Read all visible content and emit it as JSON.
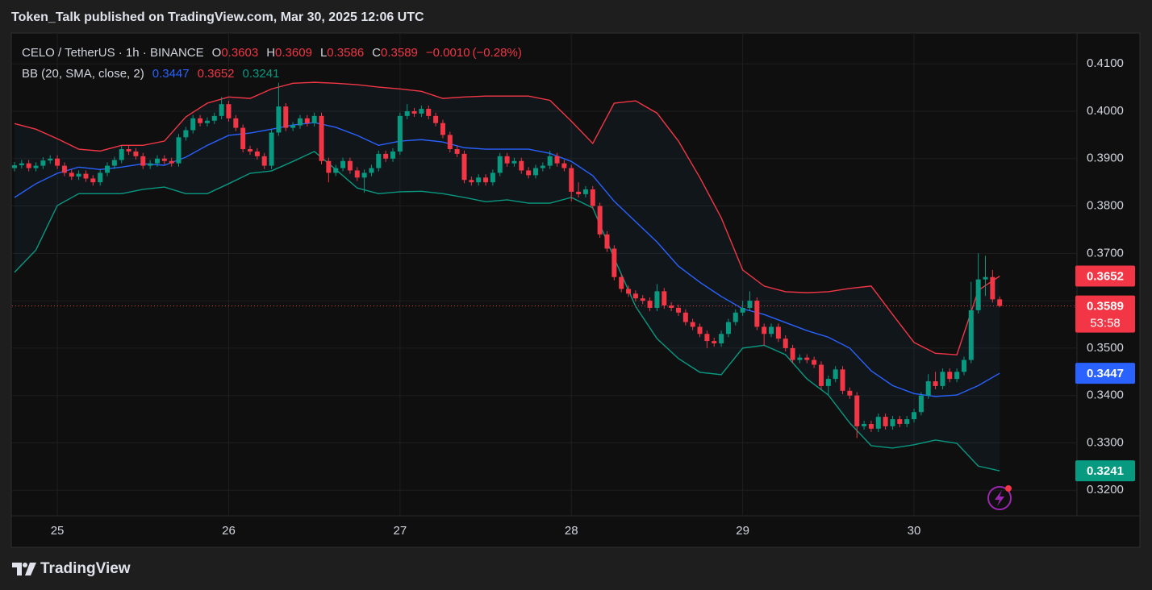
{
  "chart_data": {
    "type": "candlestick",
    "publisher": "Token_Talk published on TradingView.com, Mar 30, 2025 12:06 UTC",
    "symbol": "CELO / TetherUS · 1h · BINANCE",
    "ohlc_labels": [
      "O",
      "H",
      "L",
      "C"
    ],
    "change": {
      "value": -0.001,
      "label": "−0.0010"
    },
    "change_pct": {
      "value": -0.28,
      "label": "(−0.28%)"
    },
    "countdown": "53:58",
    "brand": "TradingView",
    "up_color": "#089981",
    "down_color": "#f23645",
    "grid": true,
    "xlim": [
      24.736,
      30.951
    ],
    "xticks": [
      25,
      26,
      27,
      28,
      29,
      30
    ],
    "ylim": [
      0.3146,
      0.4165
    ],
    "yticks": [
      {
        "value": 0.32,
        "label": "0.3200"
      },
      {
        "value": 0.33,
        "label": "0.3300"
      },
      {
        "value": 0.34,
        "label": "0.3400"
      },
      {
        "value": 0.35,
        "label": "0.3500"
      },
      {
        "value": 0.36,
        "label": "0.3600"
      },
      {
        "value": 0.37,
        "label": "0.3700"
      },
      {
        "value": 0.38,
        "label": "0.3800"
      },
      {
        "value": 0.39,
        "label": "0.3900"
      },
      {
        "value": 0.4,
        "label": "0.4000"
      },
      {
        "value": 0.41,
        "label": "0.4100"
      }
    ],
    "x": [
      24.75,
      24.7917,
      24.8333,
      24.875,
      24.9167,
      24.9583,
      25,
      25.0417,
      25.0833,
      25.125,
      25.1667,
      25.2083,
      25.25,
      25.2917,
      25.3333,
      25.375,
      25.4167,
      25.4583,
      25.5,
      25.5417,
      25.5833,
      25.625,
      25.6667,
      25.7083,
      25.75,
      25.7917,
      25.8333,
      25.875,
      25.9167,
      25.9583,
      26,
      26.0417,
      26.0833,
      26.125,
      26.1667,
      26.2083,
      26.25,
      26.2917,
      26.3333,
      26.375,
      26.4167,
      26.4583,
      26.5,
      26.5417,
      26.5833,
      26.625,
      26.6667,
      26.7083,
      26.75,
      26.7917,
      26.8333,
      26.875,
      26.9167,
      26.9583,
      27,
      27.0417,
      27.0833,
      27.125,
      27.1667,
      27.2083,
      27.25,
      27.2917,
      27.3333,
      27.375,
      27.4167,
      27.4583,
      27.5,
      27.5417,
      27.5833,
      27.625,
      27.6667,
      27.7083,
      27.75,
      27.7917,
      27.8333,
      27.875,
      27.9167,
      27.9583,
      28,
      28.0417,
      28.0833,
      28.125,
      28.1667,
      28.2083,
      28.25,
      28.2917,
      28.3333,
      28.375,
      28.4167,
      28.4583,
      28.5,
      28.5417,
      28.5833,
      28.625,
      28.6667,
      28.7083,
      28.75,
      28.7917,
      28.8333,
      28.875,
      28.9167,
      28.9583,
      29,
      29.0417,
      29.0833,
      29.125,
      29.1667,
      29.2083,
      29.25,
      29.2917,
      29.3333,
      29.375,
      29.4167,
      29.4583,
      29.5,
      29.5417,
      29.5833,
      29.625,
      29.6667,
      29.7083,
      29.75,
      29.7917,
      29.8333,
      29.875,
      29.9167,
      29.9583,
      30,
      30.0417,
      30.0833,
      30.125,
      30.1667,
      30.2083,
      30.25,
      30.2917,
      30.3333,
      30.375,
      30.4167,
      30.4583,
      30.5
    ],
    "open": [
      0.388,
      0.3886,
      0.389,
      0.388,
      0.3885,
      0.3896,
      0.39,
      0.3885,
      0.387,
      0.3862,
      0.3868,
      0.3858,
      0.385,
      0.387,
      0.3885,
      0.3897,
      0.392,
      0.3915,
      0.3905,
      0.3885,
      0.389,
      0.39,
      0.3895,
      0.389,
      0.3945,
      0.396,
      0.3985,
      0.3975,
      0.398,
      0.399,
      0.4015,
      0.3985,
      0.3965,
      0.392,
      0.3915,
      0.3905,
      0.3885,
      0.3955,
      0.401,
      0.3965,
      0.397,
      0.3985,
      0.3975,
      0.399,
      0.3895,
      0.387,
      0.388,
      0.3895,
      0.3875,
      0.386,
      0.387,
      0.388,
      0.391,
      0.39,
      0.3915,
      0.399,
      0.4,
      0.3995,
      0.4005,
      0.399,
      0.3975,
      0.395,
      0.392,
      0.391,
      0.3855,
      0.385,
      0.386,
      0.385,
      0.387,
      0.3905,
      0.389,
      0.3895,
      0.3875,
      0.3865,
      0.388,
      0.3885,
      0.3905,
      0.389,
      0.388,
      0.383,
      0.3825,
      0.3835,
      0.38,
      0.374,
      0.371,
      0.365,
      0.3625,
      0.3615,
      0.3605,
      0.36,
      0.3585,
      0.362,
      0.359,
      0.3585,
      0.3575,
      0.3555,
      0.3545,
      0.353,
      0.3515,
      0.351,
      0.353,
      0.3555,
      0.3575,
      0.3585,
      0.36,
      0.3545,
      0.353,
      0.3545,
      0.352,
      0.35,
      0.3475,
      0.348,
      0.3475,
      0.3465,
      0.342,
      0.3435,
      0.3455,
      0.341,
      0.34,
      0.3335,
      0.334,
      0.333,
      0.3355,
      0.3335,
      0.335,
      0.334,
      0.335,
      0.3365,
      0.34,
      0.343,
      0.342,
      0.345,
      0.3435,
      0.345,
      0.3475,
      0.358,
      0.3645,
      0.365,
      0.3603
    ],
    "high": [
      0.3893,
      0.3897,
      0.3897,
      0.3892,
      0.3903,
      0.3907,
      0.3907,
      0.3892,
      0.3877,
      0.3875,
      0.3875,
      0.3865,
      0.3877,
      0.3892,
      0.3904,
      0.3927,
      0.3927,
      0.3922,
      0.3912,
      0.3897,
      0.3907,
      0.3907,
      0.3902,
      0.3952,
      0.3967,
      0.3992,
      0.3992,
      0.3987,
      0.3997,
      0.403,
      0.4022,
      0.3992,
      0.3972,
      0.3927,
      0.3922,
      0.3912,
      0.3962,
      0.406,
      0.4017,
      0.3977,
      0.3992,
      0.3992,
      0.3997,
      0.3997,
      0.3902,
      0.3887,
      0.3902,
      0.3902,
      0.3882,
      0.3877,
      0.3887,
      0.3917,
      0.3917,
      0.3922,
      0.3997,
      0.4015,
      0.4007,
      0.4012,
      0.4012,
      0.3997,
      0.3982,
      0.3957,
      0.3927,
      0.3917,
      0.3862,
      0.3867,
      0.3867,
      0.3877,
      0.3912,
      0.3912,
      0.3902,
      0.3902,
      0.3882,
      0.3887,
      0.3892,
      0.3917,
      0.3912,
      0.3897,
      0.3887,
      0.385,
      0.3842,
      0.3842,
      0.3807,
      0.3747,
      0.3717,
      0.3657,
      0.3632,
      0.3622,
      0.3612,
      0.3607,
      0.3635,
      0.3627,
      0.3597,
      0.3592,
      0.3582,
      0.3562,
      0.3552,
      0.3537,
      0.3522,
      0.3537,
      0.3562,
      0.3582,
      0.36,
      0.362,
      0.3607,
      0.3552,
      0.3552,
      0.3552,
      0.3527,
      0.3507,
      0.3487,
      0.3487,
      0.3482,
      0.3472,
      0.3442,
      0.3462,
      0.3462,
      0.3417,
      0.3407,
      0.3347,
      0.3347,
      0.3362,
      0.3362,
      0.3357,
      0.3357,
      0.3357,
      0.3372,
      0.3407,
      0.3445,
      0.345,
      0.3457,
      0.3457,
      0.3457,
      0.3482,
      0.364,
      0.37,
      0.3695,
      0.3665,
      0.3609
    ],
    "low": [
      0.3873,
      0.3879,
      0.3873,
      0.3873,
      0.3878,
      0.3889,
      0.3878,
      0.3863,
      0.3855,
      0.3855,
      0.3851,
      0.3843,
      0.3843,
      0.3863,
      0.3878,
      0.389,
      0.3908,
      0.3898,
      0.3878,
      0.3878,
      0.3883,
      0.3888,
      0.3883,
      0.3883,
      0.3938,
      0.3953,
      0.3968,
      0.3968,
      0.3973,
      0.3983,
      0.3978,
      0.3958,
      0.3913,
      0.3908,
      0.3898,
      0.3878,
      0.3878,
      0.3948,
      0.3958,
      0.3958,
      0.3963,
      0.3968,
      0.3968,
      0.3888,
      0.385,
      0.3863,
      0.3873,
      0.3868,
      0.3853,
      0.3828,
      0.3863,
      0.3873,
      0.3893,
      0.3893,
      0.3908,
      0.3983,
      0.3988,
      0.3988,
      0.3983,
      0.3968,
      0.3943,
      0.3913,
      0.3903,
      0.3848,
      0.3843,
      0.3843,
      0.3843,
      0.3843,
      0.3863,
      0.3883,
      0.3883,
      0.3868,
      0.3858,
      0.3858,
      0.3873,
      0.3878,
      0.3883,
      0.3873,
      0.381,
      0.3818,
      0.3818,
      0.3793,
      0.3733,
      0.3703,
      0.3643,
      0.3618,
      0.3608,
      0.3598,
      0.3593,
      0.3578,
      0.3578,
      0.3583,
      0.3578,
      0.3568,
      0.3548,
      0.3538,
      0.3523,
      0.35,
      0.3503,
      0.3503,
      0.3523,
      0.3548,
      0.3568,
      0.3578,
      0.3538,
      0.3505,
      0.3523,
      0.3513,
      0.3493,
      0.3468,
      0.3468,
      0.3468,
      0.3458,
      0.3413,
      0.34,
      0.3428,
      0.3403,
      0.3393,
      0.331,
      0.3328,
      0.3323,
      0.3323,
      0.3328,
      0.3328,
      0.3333,
      0.3333,
      0.3343,
      0.3358,
      0.3393,
      0.3413,
      0.3413,
      0.3428,
      0.3428,
      0.3443,
      0.3468,
      0.3573,
      0.361,
      0.3596,
      0.3586
    ],
    "close": [
      0.3886,
      0.389,
      0.388,
      0.3885,
      0.3896,
      0.39,
      0.3885,
      0.387,
      0.3862,
      0.3868,
      0.3858,
      0.385,
      0.387,
      0.3885,
      0.3897,
      0.392,
      0.3915,
      0.3905,
      0.3885,
      0.389,
      0.39,
      0.3895,
      0.389,
      0.3945,
      0.396,
      0.3985,
      0.3975,
      0.398,
      0.399,
      0.4015,
      0.3985,
      0.3965,
      0.392,
      0.3915,
      0.3905,
      0.3885,
      0.3955,
      0.401,
      0.3965,
      0.397,
      0.3985,
      0.3975,
      0.399,
      0.3895,
      0.387,
      0.388,
      0.3895,
      0.3875,
      0.386,
      0.387,
      0.388,
      0.391,
      0.39,
      0.3915,
      0.399,
      0.4,
      0.3995,
      0.4005,
      0.399,
      0.3975,
      0.395,
      0.392,
      0.391,
      0.3855,
      0.385,
      0.386,
      0.385,
      0.387,
      0.3905,
      0.389,
      0.3895,
      0.3875,
      0.3865,
      0.388,
      0.3885,
      0.3905,
      0.389,
      0.388,
      0.383,
      0.3825,
      0.3835,
      0.38,
      0.374,
      0.371,
      0.365,
      0.3625,
      0.3615,
      0.3605,
      0.36,
      0.3585,
      0.362,
      0.359,
      0.3585,
      0.3575,
      0.3555,
      0.3545,
      0.353,
      0.3515,
      0.351,
      0.353,
      0.3555,
      0.3575,
      0.3585,
      0.36,
      0.3545,
      0.353,
      0.3545,
      0.352,
      0.35,
      0.3475,
      0.348,
      0.3475,
      0.3465,
      0.342,
      0.3435,
      0.3455,
      0.341,
      0.34,
      0.3335,
      0.334,
      0.333,
      0.3355,
      0.3335,
      0.335,
      0.334,
      0.335,
      0.3365,
      0.34,
      0.343,
      0.342,
      0.345,
      0.3435,
      0.345,
      0.3475,
      0.358,
      0.3645,
      0.365,
      0.3603,
      0.3589
    ],
    "indicator": {
      "label": "BB (20, SMA, close, 2)",
      "x": [
        24.75,
        24.875,
        25,
        25.125,
        25.25,
        25.375,
        25.5,
        25.625,
        25.75,
        25.875,
        26,
        26.125,
        26.25,
        26.375,
        26.5,
        26.625,
        26.75,
        26.875,
        27,
        27.125,
        27.25,
        27.375,
        27.5,
        27.625,
        27.75,
        27.875,
        28,
        28.125,
        28.25,
        28.375,
        28.5,
        28.625,
        28.75,
        28.875,
        29,
        29.125,
        29.25,
        29.375,
        29.5,
        29.625,
        29.75,
        29.875,
        30,
        30.125,
        30.25,
        30.375,
        30.5
      ],
      "series": [
        {
          "color": "#2962ff",
          "values": [
            0.3818,
            0.3847,
            0.3869,
            0.3882,
            0.3877,
            0.3882,
            0.3889,
            0.3886,
            0.3903,
            0.3928,
            0.3949,
            0.3954,
            0.3962,
            0.3971,
            0.3976,
            0.3966,
            0.3949,
            0.3928,
            0.3937,
            0.394,
            0.3935,
            0.3923,
            0.392,
            0.392,
            0.392,
            0.3911,
            0.3894,
            0.3864,
            0.381,
            0.3767,
            0.3724,
            0.3673,
            0.3639,
            0.3609,
            0.3583,
            0.3571,
            0.3554,
            0.3537,
            0.3523,
            0.35,
            0.3452,
            0.3421,
            0.3404,
            0.3398,
            0.3401,
            0.3421,
            0.3447
          ]
        },
        {
          "color": "#f23645",
          "values": [
            0.3974,
            0.3962,
            0.3942,
            0.392,
            0.3916,
            0.3928,
            0.3928,
            0.3937,
            0.3988,
            0.4017,
            0.403,
            0.4027,
            0.4047,
            0.4059,
            0.4061,
            0.4059,
            0.4056,
            0.4051,
            0.4047,
            0.4042,
            0.4027,
            0.403,
            0.4032,
            0.4032,
            0.4032,
            0.4023,
            0.3979,
            0.3932,
            0.4017,
            0.4022,
            0.3996,
            0.3937,
            0.386,
            0.3775,
            0.3665,
            0.3631,
            0.3619,
            0.3617,
            0.3619,
            0.3626,
            0.3631,
            0.3571,
            0.3512,
            0.3489,
            0.3486,
            0.3622,
            0.3652
          ]
        },
        {
          "color": "#089981",
          "values": [
            0.366,
            0.3707,
            0.3801,
            0.3826,
            0.3826,
            0.3826,
            0.3835,
            0.384,
            0.3826,
            0.3826,
            0.3847,
            0.3869,
            0.3874,
            0.3894,
            0.3915,
            0.3877,
            0.3838,
            0.3826,
            0.383,
            0.3831,
            0.3826,
            0.3818,
            0.3809,
            0.3813,
            0.3806,
            0.3806,
            0.3818,
            0.3796,
            0.369,
            0.3588,
            0.352,
            0.3478,
            0.3449,
            0.3444,
            0.35,
            0.3506,
            0.3486,
            0.3435,
            0.3401,
            0.3342,
            0.3294,
            0.3289,
            0.3296,
            0.3306,
            0.3299,
            0.3251,
            0.3241
          ]
        }
      ]
    }
  }
}
